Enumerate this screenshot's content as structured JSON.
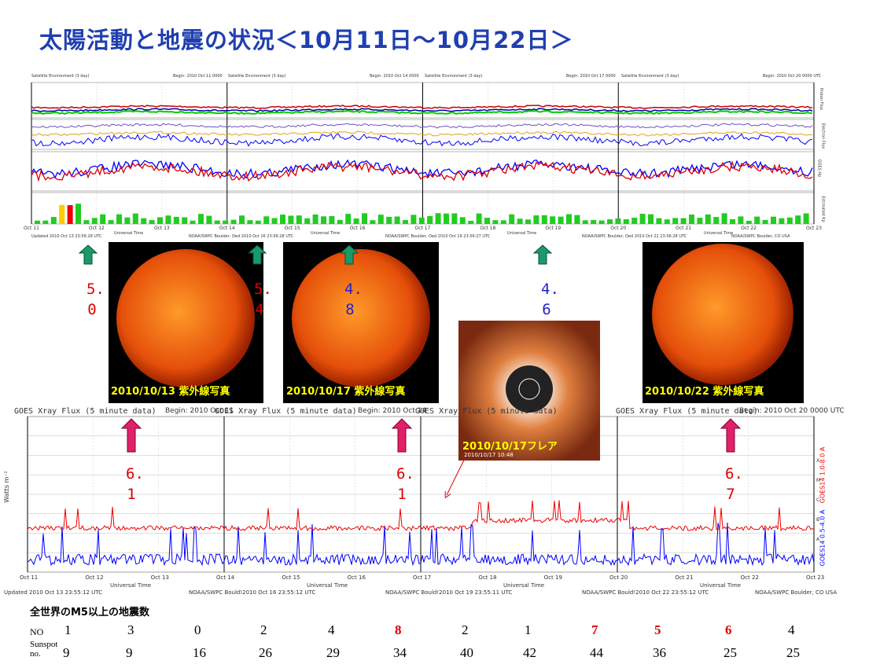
{
  "title": "太陽活動と地震の状況＜10月11日～10月22日＞",
  "top_panel": {
    "header": "Satellite Environment (3 day)",
    "begins": [
      "Begin:  2010 Oct 11 0000",
      "Begin:  2010 Oct 14 0000",
      "Begin:  2010 Oct 17 0000",
      "Begin:  2010 Oct 20 0000 UTC"
    ],
    "dates": [
      "Oct 11",
      "Oct 12",
      "Oct 13",
      "Oct 14",
      "Oct 15",
      "Oct 16",
      "Oct 17",
      "Oct 18",
      "Oct 19",
      "Oct 20",
      "Oct 21",
      "Oct 22",
      "Oct 23"
    ],
    "axis_label": "Universal Time",
    "footers": [
      "Updated 2010 Oct 13 23:56:28 UTC",
      "NOAA/SWPC Boulder, Oed 2010 Oct 16 23:56:28 UTC",
      "NOAA/SWPC Boulder, Oed 2010 Oct 19 23:56:27 UTC",
      "NOAA/SWPC Boulder, Oed 2010 Oct 22 23:56:28 UTC",
      "NOAA/SWPC Boulder, CO USA"
    ],
    "side_labels": [
      "Proton Flux",
      "Electron Flux",
      "GOES Hp",
      "Estimated Kp"
    ]
  },
  "photos": [
    {
      "caption": "2010/10/13 紫外線写真"
    },
    {
      "caption": "2010/10/17 紫外線写真"
    },
    {
      "caption": "2010/10/22 紫外線写真"
    },
    {
      "caption": "2010/10/17フレア",
      "sub": "2010/10/17 10:48"
    }
  ],
  "sunspot_magnitudes": [
    "5.0",
    "5.4",
    "4.8",
    "4.6"
  ],
  "quake_magnitudes": [
    "6.1",
    "6.1",
    "6.7"
  ],
  "xray_panel": {
    "header": "GOES Xray Flux (5 minute data)",
    "begins": [
      "Begin:  2010 Oct 11",
      "Begin:  2010 Oct 14",
      "Begin:  2010 Oct 20 0000 UTC"
    ],
    "y_label": "Watts m⁻²",
    "legend": [
      "GOES14 1.0-8.0 A",
      "GOES14 0.5-4.0 A"
    ],
    "classes": [
      "X",
      "M",
      "C",
      "B",
      "A"
    ],
    "footers": [
      "Updated 2010 Oct 13 23:55:12 UTC",
      "NOAA/SWPC Bould!2010 Oct 16 23:55:12 UTC",
      "NOAA/SWPC Bould!2010 Oct 19 23:55:11 UTC",
      "NOAA/SWPC Bould!2010 Oct 22 23:55:12 UTC",
      "NOAA/SWPC Boulder, CO USA"
    ]
  },
  "table": {
    "heading": "全世界のM5以上の地震数",
    "row_labels": [
      "NO",
      "Sunspot no."
    ],
    "quakes": [
      1,
      3,
      0,
      2,
      4,
      8,
      2,
      1,
      7,
      5,
      6,
      4
    ],
    "quake_colors": [
      "#000",
      "#000",
      "#000",
      "#000",
      "#000",
      "#d00",
      "#000",
      "#000",
      "#d00",
      "#d00",
      "#d00",
      "#000"
    ],
    "sunspots": [
      9,
      9,
      16,
      26,
      29,
      34,
      40,
      42,
      44,
      36,
      25,
      25
    ]
  }
}
